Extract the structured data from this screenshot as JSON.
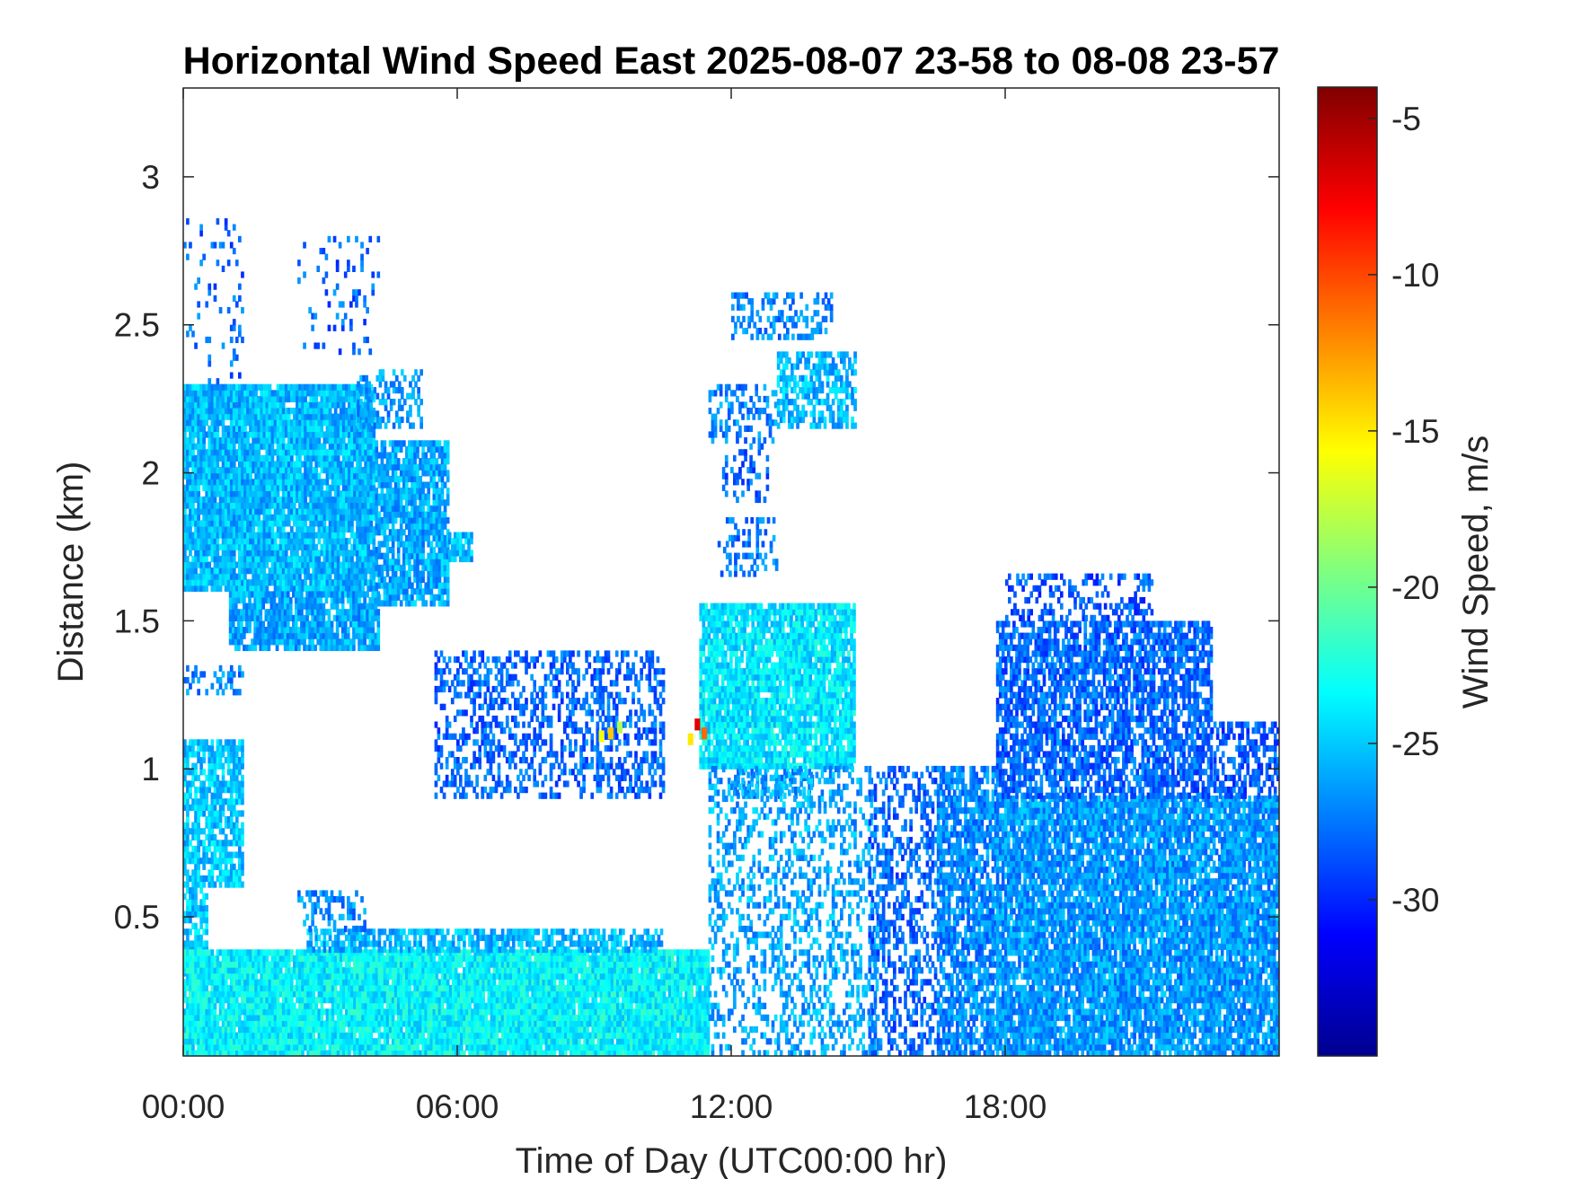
{
  "chart_data": {
    "type": "heatmap",
    "title": "Horizontal Wind Speed East 2025-08-07 23-58 to 08-08 23-57",
    "xlabel": "Time of Day (UTC00:00 hr)",
    "ylabel": "Distance (km)",
    "x_unit": "hours",
    "xlim": [
      0,
      24
    ],
    "ylim": [
      0.03,
      3.3
    ],
    "x_ticks": [
      {
        "value": 0,
        "label": "00:00"
      },
      {
        "value": 6,
        "label": "06:00"
      },
      {
        "value": 12,
        "label": "12:00"
      },
      {
        "value": 18,
        "label": "18:00"
      }
    ],
    "y_ticks": [
      {
        "value": 0.5,
        "label": "0.5"
      },
      {
        "value": 1,
        "label": "1"
      },
      {
        "value": 1.5,
        "label": "1.5"
      },
      {
        "value": 2,
        "label": "2"
      },
      {
        "value": 2.5,
        "label": "2.5"
      },
      {
        "value": 3,
        "label": "3"
      }
    ],
    "grid": false,
    "colorbar": {
      "label": "Wind Speed, m/s",
      "colormap": "jet",
      "range": [
        -35,
        -4
      ],
      "ticks": [
        {
          "value": -30,
          "label": "-30"
        },
        {
          "value": -25,
          "label": "-25"
        },
        {
          "value": -20,
          "label": "-20"
        },
        {
          "value": -15,
          "label": "-15"
        },
        {
          "value": -10,
          "label": "-10"
        },
        {
          "value": -5,
          "label": "-5"
        }
      ]
    },
    "regions": [
      {
        "t0": 0.0,
        "t1": 4.2,
        "d0": 1.6,
        "d1": 2.3,
        "v": -25.5,
        "density": 0.95
      },
      {
        "t0": 4.2,
        "t1": 5.8,
        "d0": 1.55,
        "d1": 2.1,
        "v": -26.0,
        "density": 0.85
      },
      {
        "t0": 5.8,
        "t1": 6.3,
        "d0": 1.7,
        "d1": 1.8,
        "v": -25.5,
        "density": 0.8
      },
      {
        "t0": 1.0,
        "t1": 4.3,
        "d0": 1.4,
        "d1": 1.6,
        "v": -26.0,
        "density": 0.85
      },
      {
        "t0": 0.0,
        "t1": 1.3,
        "d0": 2.3,
        "d1": 2.85,
        "v": -28.0,
        "density": 0.12
      },
      {
        "t0": 2.5,
        "t1": 4.3,
        "d0": 2.4,
        "d1": 2.8,
        "v": -28.0,
        "density": 0.12
      },
      {
        "t0": 3.8,
        "t1": 5.2,
        "d0": 2.15,
        "d1": 2.35,
        "v": -26.5,
        "density": 0.45
      },
      {
        "t0": 0.0,
        "t1": 1.3,
        "d0": 1.25,
        "d1": 1.35,
        "v": -27.0,
        "density": 0.35
      },
      {
        "t0": 0.0,
        "t1": 1.3,
        "d0": 0.6,
        "d1": 1.1,
        "v": -25.0,
        "density": 0.75
      },
      {
        "t0": 0.0,
        "t1": 0.5,
        "d0": 0.3,
        "d1": 0.6,
        "v": -25.0,
        "density": 0.75
      },
      {
        "t0": 0.0,
        "t1": 11.5,
        "d0": 0.03,
        "d1": 0.38,
        "v": -23.5,
        "density": 0.97
      },
      {
        "t0": 2.7,
        "t1": 10.5,
        "d0": 0.38,
        "d1": 0.45,
        "v": -25.5,
        "density": 0.7
      },
      {
        "t0": 2.5,
        "t1": 4.0,
        "d0": 0.45,
        "d1": 0.58,
        "v": -27.0,
        "density": 0.4
      },
      {
        "t0": 5.5,
        "t1": 10.5,
        "d0": 0.9,
        "d1": 1.4,
        "v": -28.0,
        "density": 0.42
      },
      {
        "t0": 11.3,
        "t1": 14.7,
        "d0": 1.0,
        "d1": 1.55,
        "v": -24.0,
        "density": 0.9
      },
      {
        "t0": 12.0,
        "t1": 13.8,
        "d0": 0.9,
        "d1": 1.0,
        "v": -26.5,
        "density": 0.6
      },
      {
        "t0": 11.5,
        "t1": 15.2,
        "d0": 0.03,
        "d1": 1.0,
        "v": -26.0,
        "density": 0.33
      },
      {
        "t0": 11.5,
        "t1": 13.0,
        "d0": 2.1,
        "d1": 2.3,
        "v": -27.0,
        "density": 0.4
      },
      {
        "t0": 13.0,
        "t1": 14.7,
        "d0": 2.15,
        "d1": 2.4,
        "v": -25.5,
        "density": 0.6
      },
      {
        "t0": 12.0,
        "t1": 14.2,
        "d0": 2.45,
        "d1": 2.6,
        "v": -27.0,
        "density": 0.35
      },
      {
        "t0": 11.7,
        "t1": 13.0,
        "d0": 1.65,
        "d1": 1.85,
        "v": -27.5,
        "density": 0.3
      },
      {
        "t0": 11.8,
        "t1": 12.8,
        "d0": 1.9,
        "d1": 2.1,
        "v": -28.0,
        "density": 0.3
      },
      {
        "t0": 15.0,
        "t1": 16.5,
        "d0": 0.03,
        "d1": 1.0,
        "v": -28.0,
        "density": 0.4
      },
      {
        "t0": 16.5,
        "t1": 17.8,
        "d0": 0.03,
        "d1": 1.0,
        "v": -27.0,
        "density": 0.75
      },
      {
        "t0": 17.8,
        "t1": 24.0,
        "d0": 0.03,
        "d1": 0.9,
        "v": -26.5,
        "density": 0.88
      },
      {
        "t0": 17.8,
        "t1": 22.5,
        "d0": 0.9,
        "d1": 1.5,
        "v": -28.0,
        "density": 0.72
      },
      {
        "t0": 22.5,
        "t1": 24.0,
        "d0": 0.9,
        "d1": 1.15,
        "v": -28.5,
        "density": 0.5
      },
      {
        "t0": 18.0,
        "t1": 21.2,
        "d0": 1.5,
        "d1": 1.65,
        "v": -28.5,
        "density": 0.3
      }
    ],
    "hotspots": [
      {
        "t": 11.2,
        "d": 1.13,
        "v": -7.0
      },
      {
        "t": 11.35,
        "d": 1.1,
        "v": -11.0
      },
      {
        "t": 11.05,
        "d": 1.08,
        "v": -15.0
      },
      {
        "t": 9.3,
        "d": 1.1,
        "v": -14.0
      },
      {
        "t": 9.5,
        "d": 1.12,
        "v": -18.0
      },
      {
        "t": 9.1,
        "d": 1.09,
        "v": -16.0
      }
    ]
  }
}
